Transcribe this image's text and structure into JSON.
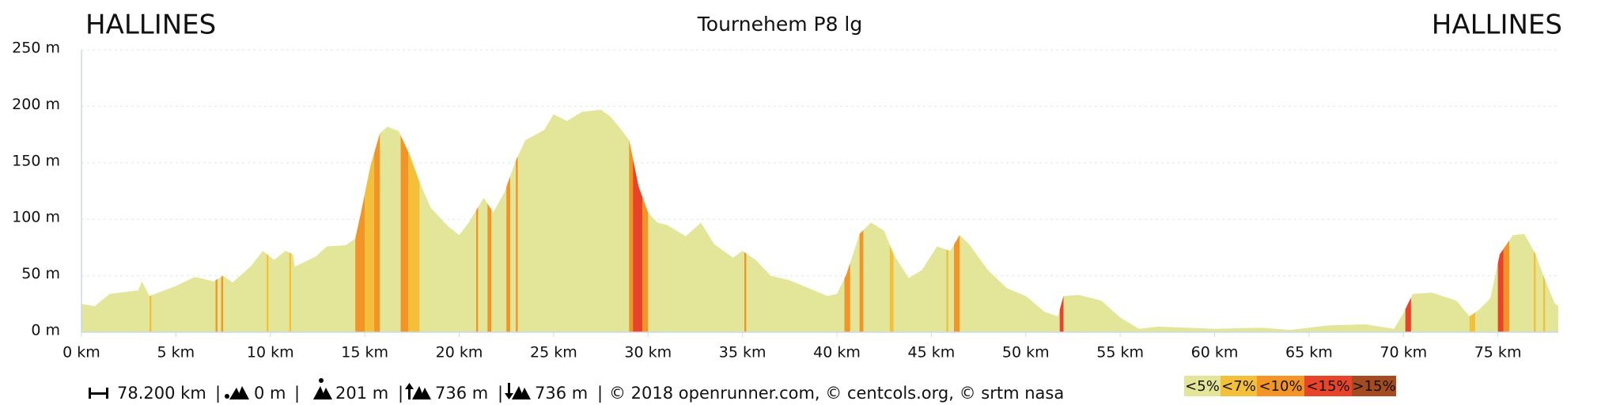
{
  "chart_data": {
    "type": "area",
    "title": "Tournehem P8 lg",
    "start_label": "HALLINES",
    "end_label": "HALLINES",
    "color": "#e3e698",
    "x": [
      0,
      0.7,
      1.5,
      3,
      3.2,
      3.6,
      5,
      6,
      7,
      7.5,
      8,
      9,
      9.6,
      10.2,
      10.8,
      11.2,
      11.3,
      12.4,
      13,
      14,
      14.5,
      14.8,
      15.3,
      15.8,
      16.2,
      16.8,
      17.4,
      17.9,
      18.5,
      19.4,
      20,
      20.5,
      21.3,
      21.8,
      22.4,
      23,
      23.5,
      24.5,
      25,
      25.7,
      26.5,
      27.5,
      28,
      28.6,
      29,
      29.5,
      30,
      30.5,
      31,
      32,
      32.8,
      33.5,
      34.5,
      35,
      35.7,
      36.5,
      37.5,
      38.5,
      39.5,
      40,
      40.5,
      41.2,
      41.8,
      42.5,
      43,
      43.8,
      44.5,
      45.3,
      46,
      46.5,
      47,
      48,
      49,
      50,
      51,
      51.7,
      52,
      52.8,
      54,
      55,
      56,
      57,
      60,
      62.5,
      64,
      66,
      68,
      69.5,
      70,
      70.5,
      71.5,
      72.8,
      73.5,
      74,
      74.6,
      75.1,
      75.8,
      76.4,
      77,
      77.5,
      78,
      78.2
    ],
    "values": [
      25,
      23,
      34,
      37,
      45,
      32,
      41,
      49,
      45,
      50,
      44,
      59,
      72,
      64,
      72,
      69,
      58,
      67,
      76,
      77,
      83,
      106,
      147,
      176,
      182,
      178,
      156,
      133,
      110,
      94,
      86,
      97,
      119,
      106,
      124,
      152,
      170,
      179,
      193,
      187,
      195,
      197,
      191,
      179,
      170,
      129,
      106,
      97,
      95,
      85,
      97,
      78,
      66,
      72,
      64,
      50,
      46,
      39,
      32,
      34,
      51,
      87,
      97,
      90,
      69,
      48,
      55,
      76,
      72,
      86,
      78,
      55,
      39,
      32,
      18,
      14,
      32,
      33,
      28,
      13,
      3,
      5,
      3,
      4,
      2,
      6,
      7,
      3,
      17,
      34,
      35,
      28,
      14,
      20,
      30,
      69,
      86,
      87,
      69,
      46,
      26,
      23
    ],
    "bands": [
      {
        "from": 3.6,
        "to": 3.7,
        "color": "#f4c03c"
      },
      {
        "from": 7.1,
        "to": 7.2,
        "color": "#f39427"
      },
      {
        "from": 7.4,
        "to": 7.5,
        "color": "#f39427"
      },
      {
        "from": 9.8,
        "to": 9.9,
        "color": "#f4c03c"
      },
      {
        "from": 11.0,
        "to": 11.1,
        "color": "#f4c03c"
      },
      {
        "from": 14.5,
        "to": 15.0,
        "color": "#f39427"
      },
      {
        "from": 15.0,
        "to": 15.5,
        "color": "#f4c03c"
      },
      {
        "from": 15.5,
        "to": 15.8,
        "color": "#f39427"
      },
      {
        "from": 16.9,
        "to": 17.3,
        "color": "#f39427"
      },
      {
        "from": 17.3,
        "to": 17.9,
        "color": "#f4c03c"
      },
      {
        "from": 20.9,
        "to": 21.0,
        "color": "#f39427"
      },
      {
        "from": 21.5,
        "to": 21.7,
        "color": "#f39427"
      },
      {
        "from": 22.5,
        "to": 22.7,
        "color": "#f39427"
      },
      {
        "from": 23.0,
        "to": 23.1,
        "color": "#f39427"
      },
      {
        "from": 29.0,
        "to": 29.2,
        "color": "#f39427"
      },
      {
        "from": 29.2,
        "to": 29.7,
        "color": "#e8442a"
      },
      {
        "from": 29.7,
        "to": 30.0,
        "color": "#f39427"
      },
      {
        "from": 35.1,
        "to": 35.2,
        "color": "#f39427"
      },
      {
        "from": 40.4,
        "to": 40.7,
        "color": "#f39427"
      },
      {
        "from": 41.2,
        "to": 41.4,
        "color": "#f39427"
      },
      {
        "from": 42.8,
        "to": 43.0,
        "color": "#f4c03c"
      },
      {
        "from": 45.8,
        "to": 45.9,
        "color": "#f4c03c"
      },
      {
        "from": 46.2,
        "to": 46.5,
        "color": "#f39427"
      },
      {
        "from": 51.8,
        "to": 52.0,
        "color": "#e8442a"
      },
      {
        "from": 70.1,
        "to": 70.4,
        "color": "#e8442a"
      },
      {
        "from": 73.5,
        "to": 73.8,
        "color": "#f4c03c"
      },
      {
        "from": 75.0,
        "to": 75.3,
        "color": "#e8442a"
      },
      {
        "from": 75.3,
        "to": 75.6,
        "color": "#f39427"
      },
      {
        "from": 76.9,
        "to": 77.0,
        "color": "#f4c03c"
      },
      {
        "from": 77.4,
        "to": 77.5,
        "color": "#f4c03c"
      }
    ],
    "xlim": [
      0,
      78.2
    ],
    "ylim": [
      0,
      250
    ],
    "xticks": [
      {
        "value": 0,
        "label": "0 km"
      },
      {
        "value": 5,
        "label": "5 km"
      },
      {
        "value": 10,
        "label": "10 km"
      },
      {
        "value": 15,
        "label": "15 km"
      },
      {
        "value": 20,
        "label": "20 km"
      },
      {
        "value": 25,
        "label": "25 km"
      },
      {
        "value": 30,
        "label": "30 km"
      },
      {
        "value": 35,
        "label": "35 km"
      },
      {
        "value": 40,
        "label": "40 km"
      },
      {
        "value": 45,
        "label": "45 km"
      },
      {
        "value": 50,
        "label": "50 km"
      },
      {
        "value": 55,
        "label": "55 km"
      },
      {
        "value": 60,
        "label": "60 km"
      },
      {
        "value": 65,
        "label": "65 km"
      },
      {
        "value": 70,
        "label": "70 km"
      },
      {
        "value": 75,
        "label": "75 km"
      }
    ],
    "yticks": [
      {
        "value": 0,
        "label": "0 m"
      },
      {
        "value": 50,
        "label": "50 m"
      },
      {
        "value": 100,
        "label": "100 m"
      },
      {
        "value": 150,
        "label": "150 m"
      },
      {
        "value": 200,
        "label": "200 m"
      },
      {
        "value": 250,
        "label": "250 m"
      }
    ],
    "grid": true,
    "legend": [
      {
        "label": "<5%",
        "color": "#e3e698"
      },
      {
        "label": "<7%",
        "color": "#f4c03c"
      },
      {
        "label": "<10%",
        "color": "#f39427"
      },
      {
        "label": "<15%",
        "color": "#e8442a"
      },
      {
        "label": ">15%",
        "color": "#a54b21"
      }
    ],
    "footer": {
      "distance": "78.200 km",
      "separator": "|",
      "min_altitude": "0 m",
      "max_altitude": "201 m",
      "total_climb": "736 m",
      "total_descent": "736 m",
      "credits": "© 2018 openrunner.com, © centcols.org, © srtm nasa"
    }
  }
}
